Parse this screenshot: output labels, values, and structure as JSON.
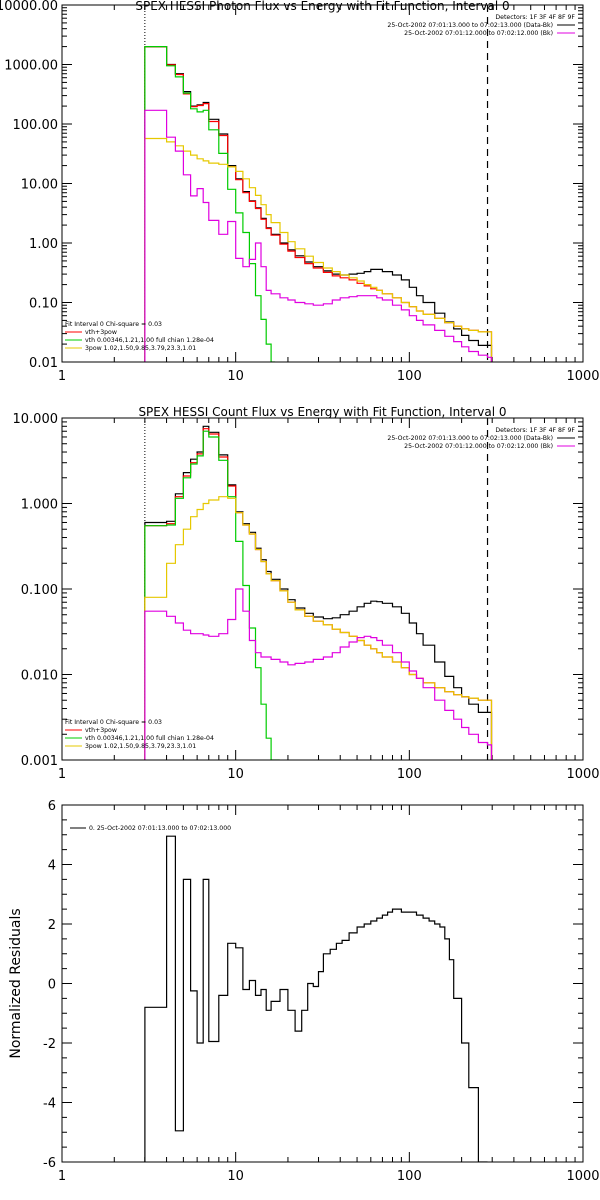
{
  "chart_data": [
    {
      "type": "line",
      "title": "SPEX HESSI Photon Flux vs Energy with Fit Function, Interval 0",
      "xscale": "log",
      "yscale": "log",
      "xlim": [
        1,
        1000
      ],
      "ylim": [
        0.01,
        10000
      ],
      "xticks": [
        "1",
        "10",
        "100",
        "1000"
      ],
      "yticks": [
        "0.01",
        "0.10",
        "1.00",
        "10.00",
        "100.00",
        "1000.00",
        "10000.00"
      ],
      "fit_range": [
        3,
        282
      ],
      "info": [
        "Detectors: 1F 3F 4F 8F 9F",
        "25-Oct-2002 07:01:13.000 to 07:02:13.000 (Data-Bk)",
        "25-Oct-2002 07:01:12.000 to 07:02:12.000 (Bk)"
      ],
      "legend": [
        "Fit Interval 0   Chi-square = 0.03",
        "vth+3pow",
        "vth 0.00346,1.21,1.00  full chian 1.28e-04",
        "3pow 1.02,1.50,9.85,3.79,23.3,1.01"
      ],
      "series": [
        {
          "name": "data",
          "color": "#000000",
          "x": [
            3,
            3.5,
            4.0,
            4.5,
            5.0,
            5.5,
            6.0,
            6.5,
            7.0,
            8.0,
            9.0,
            10,
            11,
            12,
            13,
            14,
            15,
            16,
            18,
            20,
            22,
            25,
            28,
            32,
            36,
            40,
            45,
            50,
            55,
            60,
            65,
            70,
            80,
            90,
            100,
            110,
            120,
            140,
            160,
            180,
            200,
            220,
            250,
            282
          ],
          "y": [
            2000,
            2000,
            1000,
            700,
            350,
            200,
            210,
            230,
            120,
            68,
            20,
            12,
            7.3,
            5.1,
            3.9,
            2.6,
            1.8,
            1.4,
            1.0,
            0.77,
            0.61,
            0.48,
            0.4,
            0.34,
            0.3,
            0.29,
            0.3,
            0.31,
            0.33,
            0.36,
            0.36,
            0.33,
            0.29,
            0.24,
            0.18,
            0.13,
            0.1,
            0.066,
            0.047,
            0.036,
            0.028,
            0.023,
            0.019,
            0.019
          ]
        },
        {
          "name": "vth+3pow",
          "color": "#ff0000",
          "x": [
            3,
            3.5,
            4.0,
            4.5,
            5.0,
            5.5,
            6.0,
            6.5,
            7.0,
            8.0,
            9.0,
            10,
            11,
            12,
            13,
            14,
            15,
            16,
            18,
            20,
            22,
            25,
            28,
            32,
            36,
            40,
            45,
            50,
            55,
            60,
            65,
            70,
            80,
            90,
            100,
            110,
            120,
            140,
            160,
            180,
            200,
            220,
            250,
            282
          ],
          "y": [
            1980,
            1980,
            990,
            680,
            320,
            195,
            205,
            220,
            110,
            64,
            19,
            11.6,
            7.0,
            5.0,
            3.8,
            2.5,
            1.75,
            1.35,
            0.96,
            0.73,
            0.57,
            0.45,
            0.38,
            0.32,
            0.28,
            0.26,
            0.24,
            0.21,
            0.19,
            0.17,
            0.16,
            0.14,
            0.12,
            0.1,
            0.085,
            0.072,
            0.063,
            0.054,
            0.046,
            0.04,
            0.036,
            0.034,
            0.032,
            0.032
          ]
        },
        {
          "name": "vth",
          "color": "#00cc00",
          "x": [
            3,
            3.5,
            4.0,
            4.5,
            5.0,
            5.5,
            6.0,
            6.5,
            7.0,
            8.0,
            9.0,
            10,
            11,
            12,
            13,
            14,
            15,
            16
          ],
          "y": [
            2000,
            2000,
            950,
            620,
            330,
            180,
            160,
            170,
            80,
            32,
            8.0,
            3.2,
            1.5,
            0.45,
            0.13,
            0.052,
            0.02,
            0.005
          ]
        },
        {
          "name": "3pow",
          "color": "#e6c800",
          "x": [
            3,
            3.5,
            4.0,
            4.5,
            5.0,
            5.5,
            6.0,
            6.5,
            7.0,
            8.0,
            9.0,
            10,
            11,
            12,
            13,
            14,
            15,
            16,
            18,
            20,
            22,
            25,
            28,
            32,
            36,
            40,
            45,
            50,
            55,
            60,
            65,
            70,
            80,
            90,
            100,
            110,
            120,
            140,
            160,
            180,
            200,
            220,
            250,
            282
          ],
          "y": [
            57,
            57,
            50,
            43,
            35,
            30,
            26,
            24,
            22,
            21,
            19,
            16,
            12,
            8.5,
            6.3,
            4.4,
            3.0,
            2.2,
            1.5,
            1.05,
            0.8,
            0.6,
            0.47,
            0.38,
            0.33,
            0.29,
            0.26,
            0.23,
            0.2,
            0.18,
            0.16,
            0.14,
            0.12,
            0.1,
            0.085,
            0.072,
            0.063,
            0.054,
            0.046,
            0.04,
            0.036,
            0.034,
            0.032,
            0.032
          ]
        },
        {
          "name": "background",
          "color": "#e000e0",
          "x": [
            3,
            3.5,
            4.0,
            4.5,
            5.0,
            5.5,
            6.0,
            6.5,
            7.0,
            8.0,
            9.0,
            10,
            11,
            12,
            13,
            14,
            15,
            16,
            18,
            20,
            22,
            25,
            28,
            32,
            36,
            40,
            45,
            50,
            55,
            60,
            65,
            70,
            80,
            90,
            100,
            110,
            120,
            140,
            160,
            180,
            200,
            220,
            250,
            282
          ],
          "y": [
            170,
            170,
            60,
            35,
            14,
            6.2,
            8.2,
            4.8,
            2.4,
            1.4,
            2.3,
            0.55,
            0.4,
            0.53,
            1.0,
            0.4,
            0.16,
            0.14,
            0.12,
            0.11,
            0.1,
            0.095,
            0.09,
            0.095,
            0.11,
            0.12,
            0.125,
            0.13,
            0.13,
            0.13,
            0.12,
            0.11,
            0.09,
            0.075,
            0.06,
            0.05,
            0.042,
            0.034,
            0.027,
            0.022,
            0.018,
            0.015,
            0.013,
            0.012
          ]
        }
      ]
    },
    {
      "type": "line",
      "title": "SPEX HESSI Count Flux vs Energy with Fit Function, Interval 0",
      "xscale": "log",
      "yscale": "log",
      "xlim": [
        1,
        1000
      ],
      "ylim": [
        0.001,
        10
      ],
      "xticks": [
        "1",
        "10",
        "100",
        "1000"
      ],
      "yticks": [
        "0.001",
        "0.010",
        "0.100",
        "1.000",
        "10.000"
      ],
      "fit_range": [
        3,
        282
      ],
      "info": [
        "Detectors: 1F 3F 4F 8F 9F",
        "25-Oct-2002 07:01:13.000 to 07:02:13.000 (Data-Bk)",
        "25-Oct-2002 07:01:12.000 to 07:02:12.000 (Bk)"
      ],
      "legend": [
        "Fit Interval 0   Chi-square = 0.03",
        "vth+3pow",
        "vth 0.00346,1.21,1.00  full chian 1.28e-04",
        "3pow 1.02,1.50,9.85,3.79,23.3,1.01"
      ],
      "series": [
        {
          "name": "data",
          "color": "#000000",
          "x": [
            3,
            3.5,
            4.0,
            4.5,
            5.0,
            5.5,
            6.0,
            6.5,
            7.0,
            8.0,
            9.0,
            10,
            11,
            12,
            13,
            14,
            15,
            16,
            18,
            20,
            22,
            25,
            28,
            32,
            36,
            40,
            45,
            50,
            55,
            60,
            65,
            70,
            80,
            90,
            100,
            110,
            120,
            140,
            160,
            180,
            200,
            220,
            250,
            282
          ],
          "y": [
            0.6,
            0.6,
            0.62,
            1.3,
            2.3,
            3.3,
            4.0,
            8.0,
            6.8,
            3.7,
            1.65,
            0.8,
            0.58,
            0.46,
            0.3,
            0.22,
            0.16,
            0.13,
            0.1,
            0.075,
            0.06,
            0.052,
            0.047,
            0.045,
            0.046,
            0.05,
            0.055,
            0.062,
            0.068,
            0.072,
            0.071,
            0.068,
            0.062,
            0.052,
            0.04,
            0.03,
            0.022,
            0.014,
            0.0095,
            0.007,
            0.0055,
            0.0045,
            0.0036,
            0.0036
          ]
        },
        {
          "name": "vth+3pow",
          "color": "#ff0000",
          "x": [
            3,
            3.5,
            4.0,
            4.5,
            5.0,
            5.5,
            6.0,
            6.5,
            7.0,
            8.0,
            9.0,
            10,
            11,
            12,
            13,
            14,
            15,
            16,
            18,
            20,
            22,
            25,
            28,
            32,
            36,
            40,
            45,
            50,
            55,
            60,
            65,
            70,
            80,
            90,
            100,
            110,
            120,
            140,
            160,
            180,
            200,
            220,
            250,
            282
          ],
          "y": [
            0.55,
            0.55,
            0.58,
            1.2,
            2.1,
            3.0,
            3.8,
            7.5,
            6.5,
            3.5,
            1.6,
            0.78,
            0.56,
            0.44,
            0.29,
            0.21,
            0.15,
            0.125,
            0.095,
            0.07,
            0.057,
            0.048,
            0.042,
            0.038,
            0.034,
            0.031,
            0.028,
            0.025,
            0.022,
            0.02,
            0.018,
            0.016,
            0.014,
            0.012,
            0.01,
            0.009,
            0.008,
            0.007,
            0.0063,
            0.0058,
            0.0055,
            0.0053,
            0.005,
            0.005
          ]
        },
        {
          "name": "vth",
          "color": "#00cc00",
          "x": [
            3,
            3.5,
            4.0,
            4.5,
            5.0,
            5.5,
            6.0,
            6.5,
            7.0,
            8.0,
            9.0,
            10,
            11,
            12,
            13,
            14,
            15,
            16,
            17
          ],
          "y": [
            0.55,
            0.55,
            0.56,
            1.15,
            2.0,
            2.9,
            3.6,
            7.0,
            6.0,
            3.2,
            1.2,
            0.36,
            0.11,
            0.035,
            0.012,
            0.0045,
            0.0018,
            0.001,
            0.0008
          ]
        },
        {
          "name": "3pow",
          "color": "#e6c800",
          "x": [
            3,
            3.5,
            4.0,
            4.5,
            5.0,
            5.5,
            6.0,
            6.5,
            7.0,
            8.0,
            9.0,
            10,
            11,
            12,
            13,
            14,
            15,
            16,
            18,
            20,
            22,
            25,
            28,
            32,
            36,
            40,
            45,
            50,
            55,
            60,
            65,
            70,
            80,
            90,
            100,
            110,
            120,
            140,
            160,
            180,
            200,
            220,
            250,
            282
          ],
          "y": [
            0.08,
            0.08,
            0.2,
            0.33,
            0.5,
            0.7,
            0.85,
            1.0,
            1.1,
            1.2,
            1.15,
            0.78,
            0.56,
            0.44,
            0.29,
            0.21,
            0.15,
            0.125,
            0.095,
            0.07,
            0.057,
            0.048,
            0.042,
            0.038,
            0.034,
            0.031,
            0.028,
            0.025,
            0.022,
            0.02,
            0.018,
            0.016,
            0.014,
            0.012,
            0.01,
            0.009,
            0.008,
            0.007,
            0.0063,
            0.0058,
            0.0055,
            0.0053,
            0.005,
            0.005
          ]
        },
        {
          "name": "background",
          "color": "#e000e0",
          "x": [
            3,
            3.5,
            4.0,
            4.5,
            5.0,
            5.5,
            6.0,
            6.5,
            7.0,
            8.0,
            9.0,
            10,
            11,
            12,
            13,
            14,
            15,
            16,
            18,
            20,
            22,
            25,
            28,
            32,
            36,
            40,
            45,
            50,
            55,
            60,
            65,
            70,
            80,
            90,
            100,
            110,
            120,
            140,
            160,
            180,
            200,
            220,
            250,
            282
          ],
          "y": [
            0.055,
            0.055,
            0.048,
            0.04,
            0.033,
            0.03,
            0.03,
            0.029,
            0.028,
            0.03,
            0.044,
            0.1,
            0.055,
            0.025,
            0.018,
            0.016,
            0.016,
            0.015,
            0.014,
            0.013,
            0.0135,
            0.014,
            0.015,
            0.016,
            0.018,
            0.021,
            0.024,
            0.027,
            0.028,
            0.027,
            0.025,
            0.022,
            0.018,
            0.014,
            0.011,
            0.009,
            0.007,
            0.005,
            0.0038,
            0.003,
            0.0024,
            0.002,
            0.0016,
            0.0015
          ]
        }
      ]
    },
    {
      "type": "line",
      "title": "",
      "ylabel": "Normalized Residuals",
      "xscale": "log",
      "xlim": [
        1,
        1000
      ],
      "ylim": [
        -6,
        6
      ],
      "xticks": [
        "1",
        "10",
        "100",
        "1000"
      ],
      "yticks": [
        "-6",
        "-4",
        "-2",
        "0",
        "2",
        "4",
        "6"
      ],
      "legend": [
        "0. 25-Oct-2002 07:01:13.000 to 07:02:13.000"
      ],
      "series": [
        {
          "name": "residuals",
          "color": "#000000",
          "edges": [
            3,
            4,
            4.5,
            5,
            5.5,
            6,
            6.5,
            7,
            8,
            9,
            10,
            11,
            12,
            13,
            14,
            15,
            16,
            18,
            20,
            22,
            24,
            26,
            28,
            30,
            32,
            35,
            38,
            41,
            45,
            50,
            55,
            60,
            65,
            70,
            75,
            80,
            85,
            90,
            100,
            110,
            120,
            130,
            140,
            150,
            160,
            170,
            180,
            200,
            220,
            250,
            282
          ],
          "y": [
            -0.8,
            4.95,
            -4.95,
            3.5,
            -0.25,
            -2.0,
            3.5,
            -1.95,
            -0.4,
            1.35,
            1.2,
            -0.2,
            0.1,
            -0.4,
            -0.2,
            -0.9,
            -0.6,
            -0.2,
            -0.9,
            -1.6,
            -0.9,
            0.0,
            -0.1,
            0.4,
            1.0,
            1.15,
            1.35,
            1.45,
            1.7,
            1.9,
            2.0,
            2.1,
            2.2,
            2.3,
            2.4,
            2.5,
            2.5,
            2.4,
            2.4,
            2.3,
            2.2,
            2.1,
            2.0,
            1.9,
            1.5,
            0.8,
            -0.5,
            -2.0,
            -3.5,
            -6.0
          ]
        }
      ]
    }
  ]
}
